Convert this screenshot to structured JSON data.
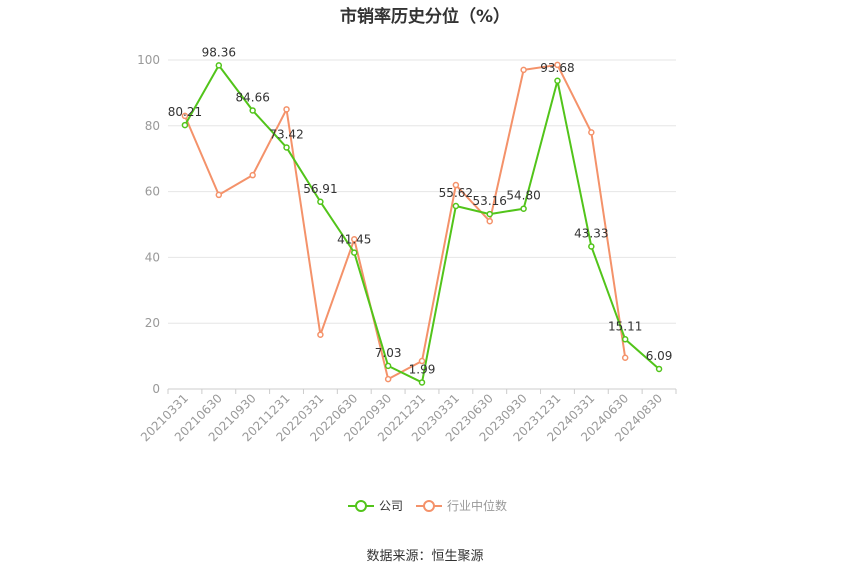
{
  "chart_data": {
    "type": "line",
    "title": "市销率历史分位（%）",
    "categories": [
      "20210331",
      "20210630",
      "20210930",
      "20211231",
      "20220331",
      "20220630",
      "20220930",
      "20221231",
      "20230331",
      "20230630",
      "20230930",
      "20231231",
      "20240331",
      "20240630",
      "20240830"
    ],
    "series": [
      {
        "name": "公司",
        "color": "#52c41a",
        "values": [
          80.21,
          98.36,
          84.66,
          73.42,
          56.91,
          41.45,
          7.03,
          1.99,
          55.62,
          53.16,
          54.8,
          93.68,
          43.33,
          15.11,
          6.09
        ],
        "labels": [
          "80.21",
          "98.36",
          "84.66",
          "73.42",
          "56.91",
          "41.45",
          "7.03",
          "1.99",
          "55.62",
          "53.16",
          "54.80",
          "93.68",
          "43.33",
          "15.11",
          "6.09"
        ]
      },
      {
        "name": "行业中位数",
        "color": "#f4926a",
        "values": [
          83,
          59,
          65,
          85,
          16.5,
          45.5,
          3,
          8.5,
          62,
          51,
          97,
          98.5,
          78,
          9.5,
          null
        ]
      }
    ],
    "ylim": [
      0,
      100
    ],
    "yticks": [
      0,
      20,
      40,
      60,
      80,
      100
    ],
    "grid": true,
    "legend_position": "bottom"
  },
  "source_note": "数据来源：恒生聚源"
}
